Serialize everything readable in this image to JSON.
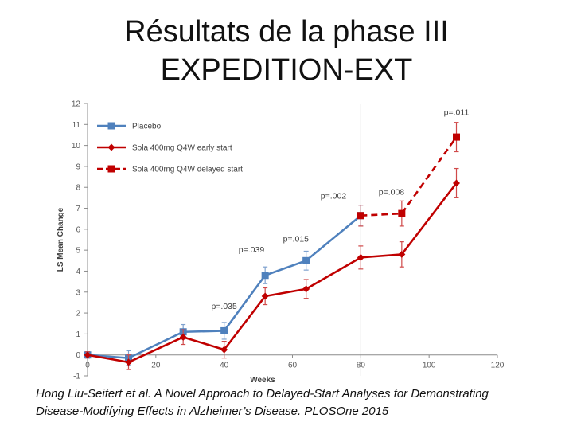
{
  "slide": {
    "title_line1": "Résultats de la phase III",
    "title_line2": "EXPEDITION-EXT",
    "caption_line1": "Hong Liu-Seifert et al. A Novel Approach to Delayed-Start Analyses for Demonstrating",
    "caption_line2": "Disease-Modifying Effects in Alzheimer’s Disease. PLOSOne 2015"
  },
  "chart_data": {
    "type": "line",
    "title": "",
    "xlabel": "Weeks",
    "ylabel": "LS Mean Change",
    "xlim": [
      0,
      120
    ],
    "ylim": [
      -1,
      12
    ],
    "xticks": [
      0,
      20,
      40,
      60,
      80,
      100,
      120
    ],
    "yticks": [
      -1,
      0,
      1,
      2,
      3,
      4,
      5,
      6,
      7,
      8,
      9,
      10,
      11,
      12
    ],
    "grid": false,
    "legend_position": "top-left",
    "reference_line_x": 80,
    "series": [
      {
        "name": "Placebo",
        "color": "#4f81bd",
        "marker": "square",
        "dashed": false,
        "x": [
          0,
          12,
          28,
          40,
          52,
          64,
          80
        ],
        "y": [
          0.0,
          -0.15,
          1.1,
          1.15,
          3.8,
          4.5,
          6.65
        ],
        "err": [
          0.15,
          0.35,
          0.35,
          0.4,
          0.4,
          0.45,
          0.5
        ]
      },
      {
        "name": "Sola 400mg Q4W early start",
        "color": "#c00000",
        "marker": "diamond",
        "dashed": false,
        "x": [
          0,
          12,
          28,
          40,
          52,
          64,
          80,
          92,
          108
        ],
        "y": [
          0.0,
          -0.35,
          0.85,
          0.25,
          2.8,
          3.15,
          4.65,
          4.8,
          8.2
        ],
        "err": [
          0.15,
          0.35,
          0.35,
          0.4,
          0.4,
          0.45,
          0.55,
          0.6,
          0.7
        ]
      },
      {
        "name": "Sola 400mg Q4W delayed start",
        "color": "#c00000",
        "marker": "square",
        "dashed": true,
        "x": [
          80,
          92,
          108
        ],
        "y": [
          6.65,
          6.75,
          10.4
        ],
        "err": [
          0.5,
          0.6,
          0.7
        ]
      }
    ],
    "annotations": [
      {
        "text": "p=.035",
        "x": 40,
        "y": 2.2
      },
      {
        "text": "p=.039",
        "x": 48,
        "y": 4.9
      },
      {
        "text": "p=.015",
        "x": 61,
        "y": 5.4
      },
      {
        "text": "p=.002",
        "x": 72,
        "y": 7.45
      },
      {
        "text": "p=.008",
        "x": 89,
        "y": 7.65
      },
      {
        "text": "p=.011",
        "x": 108,
        "y": 11.45
      }
    ]
  }
}
